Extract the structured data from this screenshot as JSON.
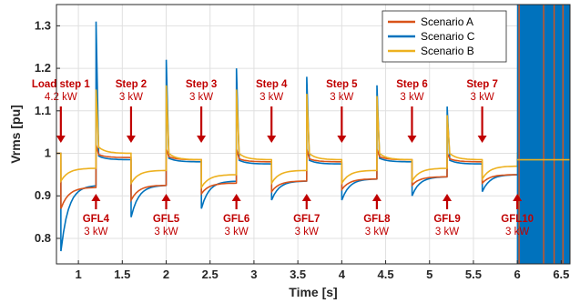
{
  "colors": {
    "scenario_a": "#d95319",
    "scenario_c": "#0072bd",
    "scenario_b": "#edb120",
    "annotation": "#c00000",
    "grid": "#e0e0e0"
  },
  "chart_data": {
    "type": "line",
    "xlabel": "Time [s]",
    "ylabel": "Vrms [pu]",
    "xlim": [
      0.75,
      6.6
    ],
    "ylim": [
      0.74,
      1.35
    ],
    "xticks": [
      1,
      1.5,
      2,
      2.5,
      3,
      3.5,
      4,
      4.5,
      5,
      5.5,
      6,
      6.5
    ],
    "xtick_labels": [
      "1",
      "1.5",
      "2",
      "2.5",
      "3",
      "3.5",
      "4",
      "4.5",
      "5",
      "5.5",
      "6",
      "6.5"
    ],
    "yticks": [
      0.8,
      0.9,
      1.0,
      1.1,
      1.2,
      1.3
    ],
    "ytick_labels": [
      "0.8",
      "0.9",
      "1",
      "1.1",
      "1.2",
      "1.3"
    ],
    "grid": true,
    "legend_position": "top-right",
    "series": [
      {
        "name": "Scenario A",
        "color": "#d95319"
      },
      {
        "name": "Scenario C",
        "color": "#0072bd"
      },
      {
        "name": "Scenario B",
        "color": "#edb120"
      }
    ],
    "events": {
      "load_steps": [
        {
          "t": 0.8,
          "label": "Load step 1",
          "power": "4.2 kW"
        },
        {
          "t": 1.6,
          "label": "Step 2",
          "power": "3 kW"
        },
        {
          "t": 2.4,
          "label": "Step 3",
          "power": "3 kW"
        },
        {
          "t": 3.2,
          "label": "Step 4",
          "power": "3 kW"
        },
        {
          "t": 4.0,
          "label": "Step 5",
          "power": "3 kW"
        },
        {
          "t": 4.8,
          "label": "Step 6",
          "power": "3 kW"
        },
        {
          "t": 5.6,
          "label": "Step 7",
          "power": "3 kW"
        }
      ],
      "gfl_connections": [
        {
          "t": 1.2,
          "label": "GFL4",
          "power": "3 kW"
        },
        {
          "t": 2.0,
          "label": "GFL5",
          "power": "3 kW"
        },
        {
          "t": 2.8,
          "label": "GFL6",
          "power": "3 kW"
        },
        {
          "t": 3.6,
          "label": "GFL7",
          "power": "3 kW"
        },
        {
          "t": 4.4,
          "label": "GFL8",
          "power": "3 kW"
        },
        {
          "t": 5.2,
          "label": "GFL9",
          "power": "3 kW"
        },
        {
          "t": 6.0,
          "label": "GFL10",
          "power": "3 kW"
        }
      ]
    },
    "levels": {
      "scenario_b_after_load_step": [
        0.965,
        0.96,
        0.95,
        0.96,
        0.96,
        0.965,
        0.97
      ],
      "scenario_b_after_gfl": [
        1.0,
        0.985,
        0.985,
        0.985,
        0.985,
        0.985,
        0.985
      ],
      "scenario_b_gfl_spike": [
        1.15,
        1.16,
        1.15,
        1.14,
        1.135,
        1.09,
        1.0
      ],
      "scenario_c_after_load_step": [
        0.925,
        0.925,
        0.935,
        0.935,
        0.94,
        0.945,
        0.95
      ],
      "scenario_c_after_gfl": [
        0.985,
        0.98,
        0.975,
        0.975,
        0.98,
        0.975
      ],
      "scenario_c_gfl_spike": [
        1.31,
        1.22,
        1.2,
        1.18,
        1.16,
        1.11
      ],
      "scenario_c_load_dip": [
        0.77,
        0.85,
        0.87,
        0.89,
        0.89,
        0.9,
        0.91
      ],
      "scenario_a_after_load_step": [
        0.92,
        0.925,
        0.93,
        0.935,
        0.94,
        0.945,
        0.95
      ],
      "scenario_a_after_gfl": [
        0.99,
        0.985,
        0.98,
        0.98,
        0.985,
        0.98
      ],
      "scenario_a_gfl_spike": [
        1.02,
        1.01,
        1.01,
        1.01,
        1.01,
        1.0
      ],
      "scenario_a_load_dip": [
        0.87,
        0.89,
        0.905,
        0.91,
        0.915,
        0.925,
        0.93
      ],
      "unstable_after_t": 6.0
    }
  }
}
